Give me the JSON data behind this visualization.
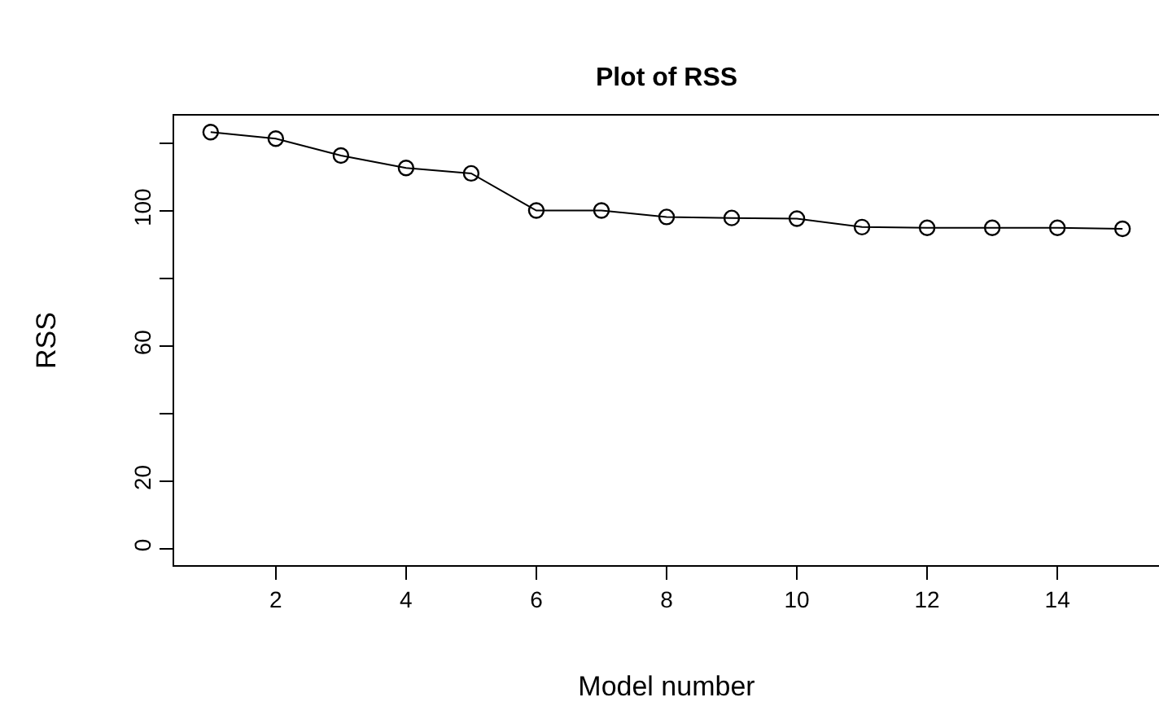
{
  "chart_data": {
    "type": "line",
    "title": "Plot of RSS",
    "xlabel": "Model number",
    "ylabel": "RSS",
    "x": [
      1,
      2,
      3,
      4,
      5,
      6,
      7,
      8,
      9,
      10,
      11,
      12,
      13,
      14,
      15
    ],
    "series": [
      {
        "color": "#000000",
        "values": [
          123.3,
          121.4,
          116.4,
          112.7,
          111.1,
          100.1,
          100.1,
          98.2,
          97.9,
          97.7,
          95.2,
          95.0,
          95.0,
          95.0,
          94.7
        ]
      }
    ],
    "xlim": [
      0.44,
      15.56
    ],
    "xticks": [
      2,
      4,
      6,
      8,
      10,
      12,
      14
    ],
    "ylim": [
      -4.9,
      128.2
    ],
    "yticks": [
      0,
      20,
      {
        "value": 40,
        "label": null
      },
      60,
      {
        "value": 80,
        "label": null
      },
      100,
      {
        "value": 120,
        "label": null
      }
    ],
    "marker": "circle",
    "line_style": "solid",
    "grid": false
  }
}
